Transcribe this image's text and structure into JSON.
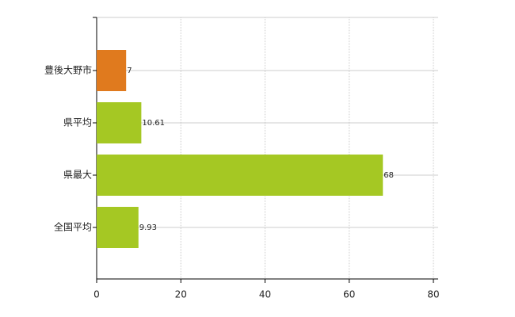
{
  "chart_data": {
    "type": "hbar",
    "categories": [
      "豊後大野市",
      "県平均",
      "県最大",
      "全国平均"
    ],
    "values": [
      7,
      10.61,
      68,
      9.93
    ],
    "colors": [
      "#e07a1e",
      "#a5c823",
      "#a5c823",
      "#a5c823"
    ],
    "xlim": [
      0,
      80
    ],
    "xticks": [
      0,
      20,
      40,
      60,
      80
    ],
    "grid": true
  }
}
